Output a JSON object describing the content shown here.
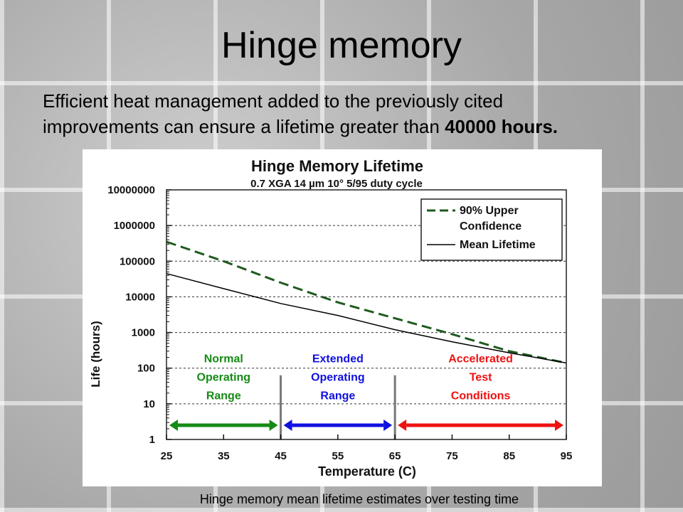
{
  "slide": {
    "title": "Hinge memory",
    "body_text": "Efficient heat management added to the previously cited improvements can ensure a lifetime greater than ",
    "body_bold": "40000 hours.",
    "caption": "Hinge memory mean lifetime estimates over testing time"
  },
  "chart_data": {
    "type": "line",
    "title": "Hinge Memory Lifetime",
    "subtitle": "0.7 XGA 14 µm  10° 5/95 duty cycle",
    "xlabel": "Temperature (C)",
    "ylabel": "Life (hours)",
    "xlim": [
      25,
      95
    ],
    "ylim": [
      1,
      10000000
    ],
    "yscale": "log",
    "x_ticks": [
      "25",
      "35",
      "45",
      "55",
      "65",
      "75",
      "85",
      "95"
    ],
    "y_ticks": [
      "10000000",
      "1000000",
      "100000",
      "10000",
      "1000",
      "100",
      "10",
      "1"
    ],
    "grid": "horizontal dashed",
    "legend_position": "top-right",
    "series": [
      {
        "name": "90% Upper Confidence",
        "style": "dashed",
        "color": "#1f5a1f",
        "x": [
          25,
          35,
          45,
          55,
          65,
          75,
          85,
          95
        ],
        "y": [
          350000,
          100000,
          25000,
          7000,
          2500,
          900,
          300,
          140
        ]
      },
      {
        "name": "Mean Lifetime",
        "style": "solid",
        "color": "#000000",
        "x": [
          25,
          35,
          45,
          55,
          65,
          75,
          85,
          95
        ],
        "y": [
          45000,
          17000,
          6500,
          3000,
          1200,
          550,
          270,
          140
        ]
      }
    ],
    "ranges": [
      {
        "label_lines": [
          "Normal",
          "Operating",
          "Range"
        ],
        "from": 25,
        "to": 45,
        "color": "#168a16"
      },
      {
        "label_lines": [
          "Extended",
          "Operating",
          "Range"
        ],
        "from": 45,
        "to": 65,
        "color": "#1010e0"
      },
      {
        "label_lines": [
          "Accelerated",
          "Test",
          "Conditions"
        ],
        "from": 65,
        "to": 95,
        "color": "#ee1111"
      }
    ]
  }
}
